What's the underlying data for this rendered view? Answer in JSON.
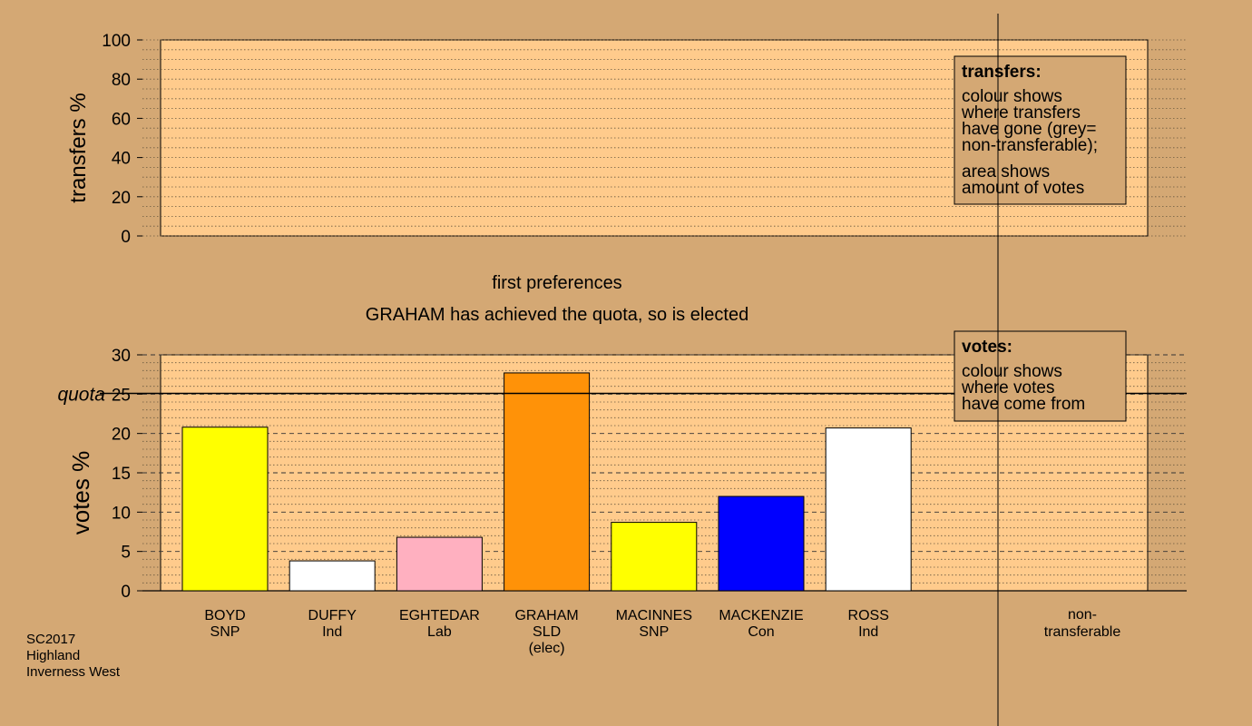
{
  "colors": {
    "background": "#d4a874",
    "panel": "#ffcb8c",
    "SNP": "#ffff00",
    "Ind": "#ffffff",
    "Lab": "#ffb0c0",
    "SLD": "#ff9208",
    "Con": "#0000ff"
  },
  "chart_data": [
    {
      "type": "bar",
      "panel": "transfers",
      "ylabel": "transfers %",
      "ylim": [
        0,
        100
      ],
      "yticks": [
        0,
        20,
        40,
        60,
        80,
        100
      ],
      "values": [],
      "legend": {
        "title": "transfers:",
        "lines_a": [
          "colour shows",
          "where transfers",
          "have gone (grey=",
          "non-transferable);"
        ],
        "lines_b": [
          "area shows",
          "amount of votes"
        ]
      }
    },
    {
      "type": "bar",
      "panel": "votes",
      "title": "first preferences",
      "subtitle": "GRAHAM has achieved the quota, so is elected",
      "ylabel": "votes %",
      "ylim": [
        0,
        30
      ],
      "yticks": [
        0,
        5,
        10,
        15,
        20,
        25,
        30
      ],
      "quota": 25.1,
      "quota_label": "quota",
      "categories": [
        {
          "name": "BOYD",
          "party": "SNP",
          "note": "",
          "value": 20.8
        },
        {
          "name": "DUFFY",
          "party": "Ind",
          "note": "",
          "value": 3.8
        },
        {
          "name": "EGHTEDAR",
          "party": "Lab",
          "note": "",
          "value": 6.8
        },
        {
          "name": "GRAHAM",
          "party": "SLD",
          "note": "(elec)",
          "value": 27.7
        },
        {
          "name": "MACINNES",
          "party": "SNP",
          "note": "",
          "value": 8.7
        },
        {
          "name": "MACKENZIE",
          "party": "Con",
          "note": "",
          "value": 12.0
        },
        {
          "name": "ROSS",
          "party": "Ind",
          "note": "",
          "value": 20.7
        }
      ],
      "extra_category": {
        "line1": "non-",
        "line2": "transferable"
      },
      "legend": {
        "title": "votes:",
        "lines": [
          "colour shows",
          "where votes",
          "have come from"
        ]
      }
    }
  ],
  "footer": {
    "line1": "SC2017",
    "line2": "Highland",
    "line3": "Inverness West"
  }
}
